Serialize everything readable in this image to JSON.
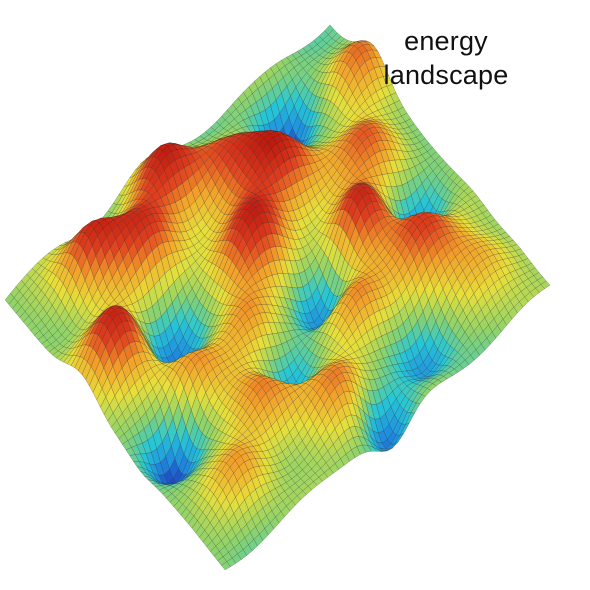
{
  "caption": {
    "line1": "energy",
    "line2": "landscape"
  },
  "colors": {
    "background": "#ffffff",
    "mesh_line": "#1a1a1a",
    "colormap": [
      "#1c2fb8",
      "#1f8fe0",
      "#27c7d6",
      "#8fd36a",
      "#e8df3a",
      "#f2a12a",
      "#e0401f",
      "#c01a10"
    ]
  }
}
